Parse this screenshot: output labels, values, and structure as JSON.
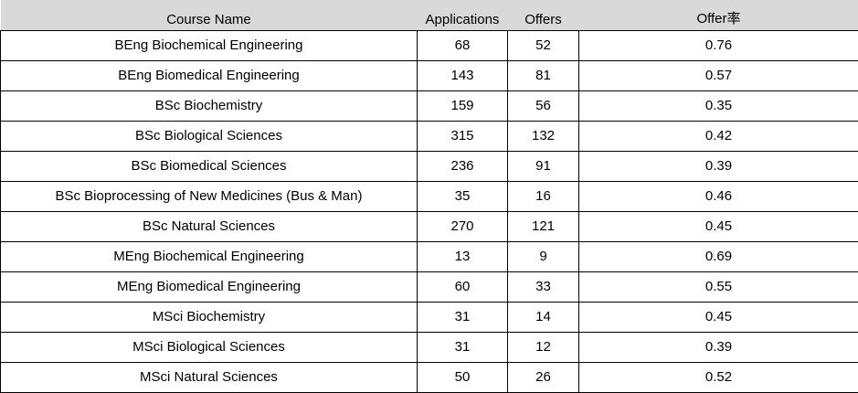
{
  "table": {
    "headers": {
      "course_name": "Course Name",
      "applications": "Applications",
      "offers": "Offers",
      "offer_rate": "Offer率"
    },
    "rows": [
      {
        "course": "BEng Biochemical Engineering",
        "applications": "68",
        "offers": "52",
        "rate": "0.76"
      },
      {
        "course": "BEng Biomedical Engineering",
        "applications": "143",
        "offers": "81",
        "rate": "0.57"
      },
      {
        "course": "BSc Biochemistry",
        "applications": "159",
        "offers": "56",
        "rate": "0.35"
      },
      {
        "course": "BSc Biological Sciences",
        "applications": "315",
        "offers": "132",
        "rate": "0.42"
      },
      {
        "course": "BSc Biomedical Sciences",
        "applications": "236",
        "offers": "91",
        "rate": "0.39"
      },
      {
        "course": "BSc Bioprocessing of New Medicines (Bus & Man)",
        "applications": "35",
        "offers": "16",
        "rate": "0.46"
      },
      {
        "course": "BSc Natural Sciences",
        "applications": "270",
        "offers": "121",
        "rate": "0.45"
      },
      {
        "course": "MEng Biochemical Engineering",
        "applications": "13",
        "offers": "9",
        "rate": "0.69"
      },
      {
        "course": "MEng Biomedical Engineering",
        "applications": "60",
        "offers": "33",
        "rate": "0.55"
      },
      {
        "course": "MSci Biochemistry",
        "applications": "31",
        "offers": "14",
        "rate": "0.45"
      },
      {
        "course": "MSci Biological Sciences",
        "applications": "31",
        "offers": "12",
        "rate": "0.39"
      },
      {
        "course": "MSci Natural Sciences",
        "applications": "50",
        "offers": "26",
        "rate": "0.52"
      }
    ]
  }
}
